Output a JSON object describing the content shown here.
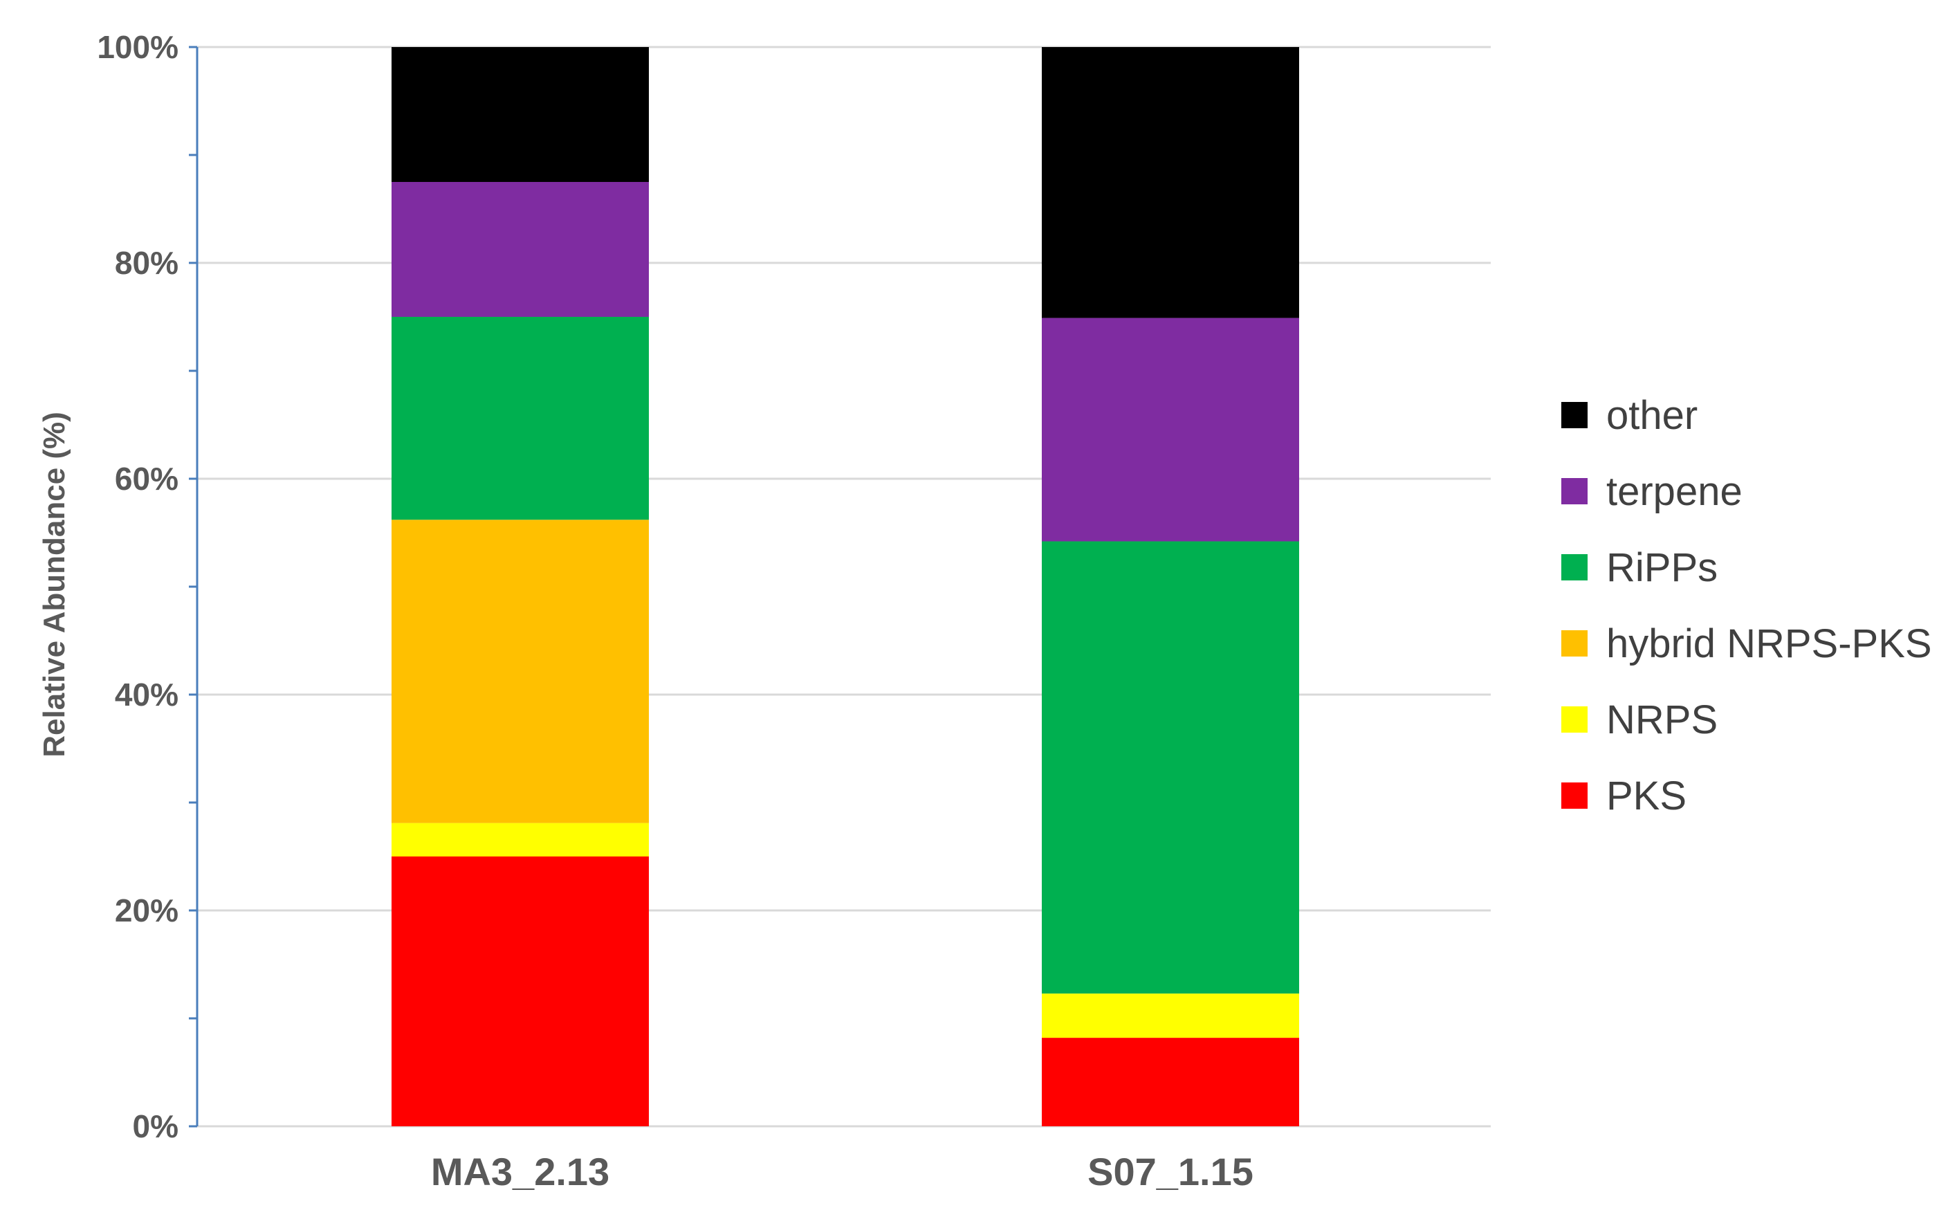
{
  "chart_data": {
    "type": "bar",
    "stacked": true,
    "title": "",
    "xlabel": "",
    "ylabel": "Relative Abundance (%)",
    "ylim": [
      0,
      100
    ],
    "y_ticks": [
      "0%",
      "20%",
      "40%",
      "60%",
      "80%",
      "100%"
    ],
    "grid": true,
    "legend_position": "right",
    "categories": [
      "MA3_2.13",
      "S07_1.15"
    ],
    "series": [
      {
        "name": "PKS",
        "color": "#ff0000",
        "values": [
          25.0,
          8.2
        ]
      },
      {
        "name": "NRPS",
        "color": "#ffff00",
        "values": [
          3.1,
          4.1
        ]
      },
      {
        "name": "hybrid NRPS-PKS",
        "color": "#ffc000",
        "values": [
          28.1,
          0.0
        ]
      },
      {
        "name": "RiPPs",
        "color": "#00b050",
        "values": [
          18.8,
          41.9
        ]
      },
      {
        "name": "terpene",
        "color": "#7f2ca1",
        "values": [
          12.5,
          20.7
        ]
      },
      {
        "name": "other",
        "color": "#000000",
        "values": [
          12.5,
          25.1
        ]
      }
    ]
  }
}
